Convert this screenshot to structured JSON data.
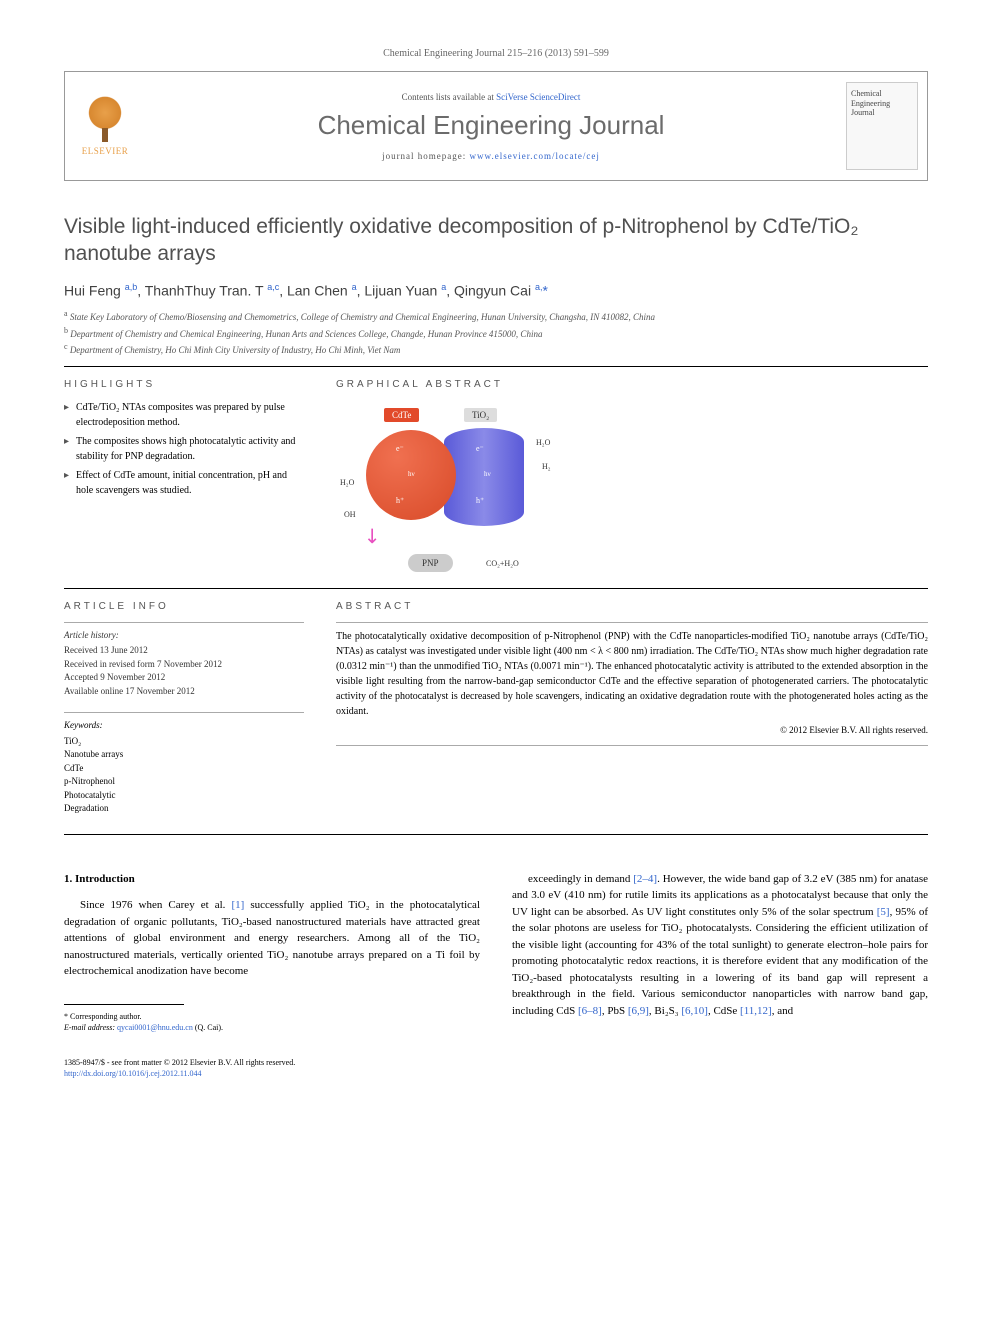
{
  "journal_ref": "Chemical Engineering Journal 215–216 (2013) 591–599",
  "header": {
    "elsevier": "ELSEVIER",
    "contents_prefix": "Contents lists available at ",
    "contents_link": "SciVerse ScienceDirect",
    "journal_name": "Chemical Engineering Journal",
    "homepage_prefix": "journal homepage: ",
    "homepage_link": "www.elsevier.com/locate/cej",
    "cover_text": "Chemical Engineering Journal"
  },
  "title": "Visible light-induced efficiently oxidative decomposition of p-Nitrophenol by CdTe/TiO₂ nanotube arrays",
  "authors_html": "Hui Feng <sup>a,b</sup>, ThanhThuy Tran. T <sup>a,c</sup>, Lan Chen <sup>a</sup>, Lijuan Yuan <sup>a</sup>, Qingyun Cai <sup>a,</sup><span class='star'>*</span>",
  "affiliations": [
    "a State Key Laboratory of Chemo/Biosensing and Chemometrics, College of Chemistry and Chemical Engineering, Hunan University, Changsha, IN 410082, China",
    "b Department of Chemistry and Chemical Engineering, Hunan Arts and Sciences College, Changde, Hunan Province 415000, China",
    "c Department of Chemistry, Ho Chi Minh City University of Industry, Ho Chi Minh, Viet Nam"
  ],
  "highlights_label": "HIGHLIGHTS",
  "highlights": [
    "CdTe/TiO₂ NTAs composites was prepared by pulse electrodeposition method.",
    "The composites shows high photocatalytic activity and stability for PNP degradation.",
    "Effect of CdTe amount, initial concentration, pH and hole scavengers was studied."
  ],
  "graphical_label": "GRAPHICAL ABSTRACT",
  "ga": {
    "cdte": "CdTe",
    "tio2": "TiO₂",
    "h2o_top": "H₂O",
    "h2_right": "H₂",
    "h2o_left": "H₂O",
    "oh": "OH",
    "e_minus": "e⁻",
    "h_plus": "h⁺",
    "hv": "hν",
    "pnp": "PNP",
    "co2": "CO₂+H₂O"
  },
  "article_info_label": "ARTICLE INFO",
  "article_history_hdr": "Article history:",
  "article_history": [
    "Received 13 June 2012",
    "Received in revised form 7 November 2012",
    "Accepted 9 November 2012",
    "Available online 17 November 2012"
  ],
  "keywords_hdr": "Keywords:",
  "keywords": [
    "TiO₂",
    "Nanotube arrays",
    "CdTe",
    "p-Nitrophenol",
    "Photocatalytic",
    "Degradation"
  ],
  "abstract_label": "ABSTRACT",
  "abstract_text": "The photocatalytically oxidative decomposition of p-Nitrophenol (PNP) with the CdTe nanoparticles-modified TiO₂ nanotube arrays (CdTe/TiO₂ NTAs) as catalyst was investigated under visible light (400 nm < λ < 800 nm) irradiation. The CdTe/TiO₂ NTAs show much higher degradation rate (0.0312 min⁻¹) than the unmodified TiO₂ NTAs (0.0071 min⁻¹). The enhanced photocatalytic activity is attributed to the extended absorption in the visible light resulting from the narrow-band-gap semiconductor CdTe and the effective separation of photogenerated carriers. The photocatalytic activity of the photocatalyst is decreased by hole scavengers, indicating an oxidative degradation route with the photogenerated holes acting as the oxidant.",
  "copyright": "© 2012 Elsevier B.V. All rights reserved.",
  "intro_heading": "1. Introduction",
  "intro_col1": "Since 1976 when Carey et al. [1] successfully applied TiO₂ in the photocatalytical degradation of organic pollutants, TiO₂-based nanostructured materials have attracted great attentions of global environment and energy researchers. Among all of the TiO₂ nanostructured materials, vertically oriented TiO₂ nanotube arrays prepared on a Ti foil by electrochemical anodization have become",
  "intro_col2": "exceedingly in demand [2–4]. However, the wide band gap of 3.2 eV (385 nm) for anatase and 3.0 eV (410 nm) for rutile limits its applications as a photocatalyst because that only the UV light can be absorbed. As UV light constitutes only 5% of the solar spectrum [5], 95% of the solar photons are useless for TiO₂ photocatalysts. Considering the efficient utilization of the visible light (accounting for 43% of the total sunlight) to generate electron–hole pairs for promoting photocatalytic redox reactions, it is therefore evident that any modification of the TiO₂-based photocatalysts resulting in a lowering of its band gap will represent a breakthrough in the field. Various semiconductor nanoparticles with narrow band gap, including CdS [6–8], PbS [6,9], Bi₂S₃ [6,10], CdSe [11,12], and",
  "corr_label": "* Corresponding author.",
  "email_label": "E-mail address:",
  "email": "qycai0001@hnu.edu.cn",
  "email_who": "(Q. Cai).",
  "issn_line": "1385-8947/$ - see front matter © 2012 Elsevier B.V. All rights reserved.",
  "doi": "http://dx.doi.org/10.1016/j.cej.2012.11.044",
  "colors": {
    "link": "#3366cc",
    "text_gray": "#555555",
    "cdte_orange": "#e24a2a",
    "tio2_blue": "#5a5ad8",
    "elsevier_orange": "#e8a04a"
  }
}
